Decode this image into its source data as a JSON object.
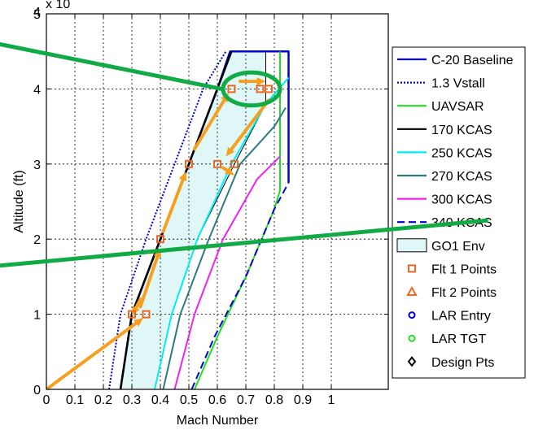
{
  "chart_data": {
    "type": "line",
    "title": "",
    "xlabel": "Mach Number",
    "ylabel": "Altitude (ft)",
    "y_multiplier_label": "x 10",
    "y_multiplier_exponent": "4",
    "xlim": [
      0,
      1.2
    ],
    "ylim": [
      0,
      50000
    ],
    "x_ticks": [
      "0",
      "0.1",
      "0.2",
      "0.3",
      "0.4",
      "0.5",
      "0.6",
      "0.7",
      "0.8",
      "0.9",
      "1"
    ],
    "x_tick_values": [
      0,
      0.1,
      0.2,
      0.3,
      0.4,
      0.5,
      0.6,
      0.7,
      0.8,
      0.9,
      1.0
    ],
    "y_ticks": [
      "0",
      "1",
      "2",
      "3",
      "4",
      "5"
    ],
    "y_tick_values": [
      0,
      10000,
      20000,
      30000,
      40000,
      50000
    ],
    "grid": true,
    "legend_position": "right",
    "envelope": {
      "name": "GO1 Env",
      "color": "#e0f7f7",
      "x": [
        0.26,
        0.3,
        0.4,
        0.5,
        0.6,
        0.65,
        0.77,
        0.77,
        0.66,
        0.53,
        0.44,
        0.38
      ],
      "y": [
        0,
        10000,
        20000,
        30000,
        40000,
        45000,
        45000,
        38000,
        30000,
        20000,
        10000,
        0
      ]
    },
    "series": [
      {
        "name": "C-20 Baseline",
        "color": "#0000cc",
        "dash": "solid",
        "width": 2.5,
        "x": [
          0.26,
          0.3,
          0.4,
          0.5,
          0.6,
          0.645,
          0.85,
          0.85,
          0.85
        ],
        "y": [
          0,
          10000,
          20000,
          30000,
          40000,
          45000,
          45000,
          35000,
          27500
        ]
      },
      {
        "name": "1.3 Vstall",
        "color": "#0000cc",
        "dash": "dotted",
        "width": 2,
        "x": [
          0.22,
          0.26,
          0.35,
          0.45,
          0.55,
          0.63
        ],
        "y": [
          0,
          10000,
          20000,
          30000,
          40000,
          45000
        ]
      },
      {
        "name": "UAVSAR",
        "color": "#22dd22",
        "dash": "solid",
        "width": 2,
        "x": [
          0.52,
          0.6,
          0.7,
          0.8,
          0.82,
          0.82
        ],
        "y": [
          0,
          7000,
          15000,
          24000,
          26500,
          45000
        ]
      },
      {
        "name": "170 KCAS",
        "color": "#000000",
        "dash": "solid",
        "width": 2.5,
        "x": [
          0.26,
          0.3,
          0.4,
          0.5,
          0.6,
          0.65
        ],
        "y": [
          0,
          10000,
          20000,
          30000,
          40000,
          45000
        ]
      },
      {
        "name": "250 KCAS",
        "color": "#00eeee",
        "dash": "solid",
        "width": 2,
        "x": [
          0.38,
          0.44,
          0.53,
          0.65,
          0.77,
          0.85
        ],
        "y": [
          0,
          10000,
          20000,
          30000,
          38000,
          41500
        ]
      },
      {
        "name": "270 KCAS",
        "color": "#2e7b7b",
        "dash": "solid",
        "width": 2,
        "x": [
          0.41,
          0.47,
          0.57,
          0.68,
          0.8,
          0.84
        ],
        "y": [
          0,
          10000,
          20000,
          30000,
          35000,
          37500
        ]
      },
      {
        "name": "300 KCAS",
        "color": "#ee22ee",
        "dash": "solid",
        "width": 2,
        "x": [
          0.45,
          0.52,
          0.62,
          0.74,
          0.82
        ],
        "y": [
          0,
          10000,
          20000,
          28000,
          31000
        ]
      },
      {
        "name": "340 KCAS",
        "color": "#0000cc",
        "dash": "dashed",
        "width": 2,
        "x": [
          0.51,
          0.59,
          0.7,
          0.8,
          0.85
        ],
        "y": [
          0,
          7000,
          15000,
          24000,
          27500
        ]
      }
    ],
    "points": [
      {
        "name": "Flt 1 Points",
        "marker": "square",
        "color": "#ee6622",
        "x": [
          0.3,
          0.35,
          0.4,
          0.5,
          0.6,
          0.66,
          0.65,
          0.75,
          0.78
        ],
        "y": [
          10000,
          10000,
          20000,
          30000,
          30000,
          30000,
          40000,
          40000,
          40000
        ]
      },
      {
        "name": "Flt 2 Points",
        "marker": "triangle",
        "color": "#ee6622",
        "x": [],
        "y": []
      },
      {
        "name": "LAR Entry",
        "marker": "circle",
        "color": "#0000cc",
        "x": [],
        "y": []
      },
      {
        "name": "LAR TGT",
        "marker": "circle",
        "color": "#22dd22",
        "x": [],
        "y": []
      },
      {
        "name": "Design Pts",
        "marker": "diamond",
        "color": "#000000",
        "x": [],
        "y": []
      }
    ],
    "arrows": [
      {
        "color": "#f5a020",
        "x": [
          0,
          0.34
        ],
        "y": [
          0,
          9500
        ]
      },
      {
        "color": "#f5a020",
        "x": [
          0.33,
          0.3
        ],
        "y": [
          12000,
          9800
        ]
      },
      {
        "color": "#f5a020",
        "x": [
          0.33,
          0.4
        ],
        "y": [
          11000,
          18800
        ]
      },
      {
        "color": "#f5a020",
        "x": [
          0.41,
          0.49
        ],
        "y": [
          21000,
          29000
        ]
      },
      {
        "color": "#f5a020",
        "x": [
          0.52,
          0.64
        ],
        "y": [
          32000,
          39500
        ]
      },
      {
        "color": "#f5a020",
        "x": [
          0.78,
          0.63
        ],
        "y": [
          38500,
          31000
        ]
      },
      {
        "color": "#f5a020",
        "x": [
          0.62,
          0.66
        ],
        "y": [
          29500,
          28500
        ]
      },
      {
        "color": "#f5a020",
        "x": [
          0.68,
          0.77
        ],
        "y": [
          41000,
          41000
        ]
      }
    ],
    "annotations": [
      {
        "type": "ellipse",
        "color": "#11aa44",
        "cx": 0.72,
        "cy": 40000,
        "rx": 0.1,
        "ry": 2200
      },
      {
        "type": "line",
        "color": "#11aa44",
        "x": [
          -0.3,
          0.615
        ],
        "y": [
          47000,
          40000
        ]
      },
      {
        "type": "line",
        "color": "#11aa44",
        "x": [
          -0.3,
          1.55
        ],
        "y": [
          16000,
          22500
        ]
      }
    ],
    "legend": [
      {
        "label": "C-20 Baseline",
        "kind": "line",
        "color": "#0000cc",
        "dash": "solid"
      },
      {
        "label": "1.3 Vstall",
        "kind": "line",
        "color": "#0000cc",
        "dash": "dotted"
      },
      {
        "label": "UAVSAR",
        "kind": "line",
        "color": "#22dd22",
        "dash": "solid"
      },
      {
        "label": "170 KCAS",
        "kind": "line",
        "color": "#000000",
        "dash": "solid"
      },
      {
        "label": "250 KCAS",
        "kind": "line",
        "color": "#00eeee",
        "dash": "solid"
      },
      {
        "label": "270 KCAS",
        "kind": "line",
        "color": "#2e7b7b",
        "dash": "solid"
      },
      {
        "label": "300 KCAS",
        "kind": "line",
        "color": "#ee22ee",
        "dash": "solid"
      },
      {
        "label": "340 KCAS",
        "kind": "line",
        "color": "#0000cc",
        "dash": "dashed"
      },
      {
        "label": "GO1 Env",
        "kind": "patch",
        "color": "#e0f7f7"
      },
      {
        "label": "Flt 1 Points",
        "kind": "square",
        "color": "#ee6622"
      },
      {
        "label": "Flt 2 Points",
        "kind": "triangle",
        "color": "#ee6622"
      },
      {
        "label": "LAR Entry",
        "kind": "circle",
        "color": "#0000cc"
      },
      {
        "label": "LAR TGT",
        "kind": "circle",
        "color": "#22dd22"
      },
      {
        "label": "Design Pts",
        "kind": "diamond",
        "color": "#000000"
      }
    ]
  }
}
